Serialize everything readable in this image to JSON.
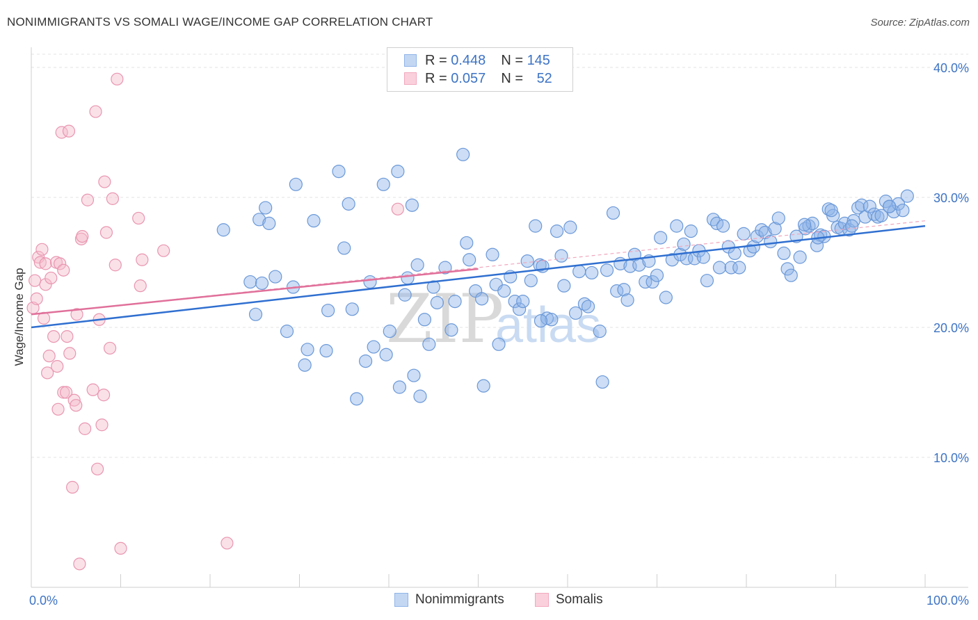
{
  "title": "NONIMMIGRANTS VS SOMALI WAGE/INCOME GAP CORRELATION CHART",
  "source": "Source: ZipAtlas.com",
  "watermark": {
    "zip": "ZIP",
    "atlas": "atlas"
  },
  "legend": {
    "rows": [
      {
        "r_label": "R = ",
        "r_value": "0.448",
        "n_label": "N = ",
        "n_value": "145",
        "color": "#8fb4e8"
      },
      {
        "r_label": "R = ",
        "r_value": "0.057",
        "n_label": "N = ",
        "n_value": "52",
        "color": "#f2a8be"
      }
    ]
  },
  "chart_data": {
    "type": "scatter",
    "xlabel": "",
    "ylabel": "Wage/Income Gap",
    "xlim": [
      0,
      100
    ],
    "ylim": [
      0,
      40
    ],
    "x_tick_labels": [
      "0.0%",
      "100.0%"
    ],
    "y_ticks": [
      10,
      20,
      30,
      40
    ],
    "y_tick_labels": [
      "10.0%",
      "20.0%",
      "30.0%",
      "40.0%"
    ],
    "grid": true,
    "series": [
      {
        "name": "Nonimmigrants",
        "color": "#8fb4e8",
        "stroke": "#6a98d8",
        "trend": {
          "x": [
            0,
            100
          ],
          "y": [
            20.0,
            27.8
          ],
          "color": "#2f6fd0"
        },
        "points": [
          [
            21.5,
            27.5
          ],
          [
            24.5,
            23.5
          ],
          [
            25.5,
            28.3
          ],
          [
            25.8,
            23.4
          ],
          [
            26.2,
            29.2
          ],
          [
            26.6,
            28.0
          ],
          [
            27.3,
            23.9
          ],
          [
            25.1,
            21.0
          ],
          [
            28.6,
            19.7
          ],
          [
            29.3,
            23.1
          ],
          [
            29.6,
            31.0
          ],
          [
            30.6,
            17.1
          ],
          [
            30.9,
            18.3
          ],
          [
            31.6,
            28.2
          ],
          [
            33.0,
            18.2
          ],
          [
            33.2,
            21.3
          ],
          [
            34.4,
            32.0
          ],
          [
            35.0,
            26.1
          ],
          [
            35.5,
            29.5
          ],
          [
            35.9,
            21.4
          ],
          [
            36.4,
            14.5
          ],
          [
            37.4,
            17.4
          ],
          [
            37.9,
            23.5
          ],
          [
            38.3,
            18.5
          ],
          [
            39.4,
            31.0
          ],
          [
            39.7,
            17.9
          ],
          [
            40.1,
            19.7
          ],
          [
            41.0,
            32.0
          ],
          [
            41.2,
            15.4
          ],
          [
            41.8,
            22.5
          ],
          [
            42.1,
            23.8
          ],
          [
            42.6,
            29.4
          ],
          [
            43.2,
            24.8
          ],
          [
            43.5,
            14.7
          ],
          [
            44.0,
            20.6
          ],
          [
            44.5,
            18.7
          ],
          [
            45.0,
            23.1
          ],
          [
            45.4,
            21.9
          ],
          [
            46.3,
            24.6
          ],
          [
            47.0,
            19.8
          ],
          [
            47.4,
            22.0
          ],
          [
            48.3,
            33.3
          ],
          [
            48.7,
            26.5
          ],
          [
            49.0,
            25.2
          ],
          [
            49.7,
            22.8
          ],
          [
            50.4,
            22.2
          ],
          [
            50.6,
            15.5
          ],
          [
            51.6,
            25.6
          ],
          [
            52.0,
            23.3
          ],
          [
            52.3,
            18.7
          ],
          [
            52.9,
            22.8
          ],
          [
            53.6,
            23.9
          ],
          [
            54.1,
            22.0
          ],
          [
            54.6,
            21.4
          ],
          [
            55.0,
            22.0
          ],
          [
            55.5,
            25.1
          ],
          [
            55.9,
            23.6
          ],
          [
            56.4,
            27.8
          ],
          [
            56.9,
            24.8
          ],
          [
            57.2,
            24.7
          ],
          [
            57.7,
            20.7
          ],
          [
            58.2,
            20.6
          ],
          [
            58.8,
            27.4
          ],
          [
            59.3,
            25.5
          ],
          [
            59.6,
            23.2
          ],
          [
            60.3,
            27.7
          ],
          [
            60.9,
            21.1
          ],
          [
            61.3,
            24.3
          ],
          [
            61.9,
            21.8
          ],
          [
            62.3,
            21.6
          ],
          [
            62.7,
            24.2
          ],
          [
            63.6,
            19.7
          ],
          [
            63.9,
            15.8
          ],
          [
            64.4,
            24.4
          ],
          [
            65.1,
            28.8
          ],
          [
            65.5,
            22.8
          ],
          [
            65.9,
            24.9
          ],
          [
            66.3,
            22.9
          ],
          [
            66.7,
            22.1
          ],
          [
            67.0,
            24.7
          ],
          [
            67.5,
            25.6
          ],
          [
            68.0,
            24.8
          ],
          [
            68.7,
            23.5
          ],
          [
            69.1,
            25.1
          ],
          [
            69.5,
            23.5
          ],
          [
            70.0,
            24.0
          ],
          [
            70.4,
            26.9
          ],
          [
            71.0,
            22.3
          ],
          [
            71.7,
            25.2
          ],
          [
            72.2,
            27.8
          ],
          [
            72.6,
            25.6
          ],
          [
            73.0,
            26.4
          ],
          [
            73.3,
            25.3
          ],
          [
            73.8,
            27.4
          ],
          [
            74.2,
            25.3
          ],
          [
            74.7,
            25.9
          ],
          [
            75.2,
            25.4
          ],
          [
            75.6,
            23.6
          ],
          [
            76.3,
            28.3
          ],
          [
            76.7,
            28.0
          ],
          [
            77.0,
            24.6
          ],
          [
            77.4,
            27.8
          ],
          [
            78.0,
            26.2
          ],
          [
            78.3,
            24.6
          ],
          [
            78.7,
            25.7
          ],
          [
            79.2,
            24.6
          ],
          [
            79.7,
            27.2
          ],
          [
            80.4,
            25.9
          ],
          [
            80.8,
            26.2
          ],
          [
            81.2,
            27.0
          ],
          [
            81.7,
            27.5
          ],
          [
            82.1,
            27.3
          ],
          [
            82.7,
            26.6
          ],
          [
            83.2,
            27.6
          ],
          [
            83.6,
            28.4
          ],
          [
            84.2,
            25.7
          ],
          [
            84.6,
            24.5
          ],
          [
            85.0,
            24.0
          ],
          [
            85.6,
            27.0
          ],
          [
            86.0,
            25.4
          ],
          [
            86.6,
            27.6
          ],
          [
            87.0,
            27.8
          ],
          [
            87.4,
            28.0
          ],
          [
            87.9,
            26.3
          ],
          [
            88.3,
            27.1
          ],
          [
            88.7,
            27.0
          ],
          [
            89.2,
            29.1
          ],
          [
            89.7,
            28.6
          ],
          [
            90.2,
            27.7
          ],
          [
            90.6,
            27.6
          ],
          [
            91.0,
            28.0
          ],
          [
            91.5,
            27.5
          ],
          [
            92.0,
            28.2
          ],
          [
            92.5,
            29.2
          ],
          [
            92.9,
            29.4
          ],
          [
            93.3,
            28.5
          ],
          [
            93.8,
            29.3
          ],
          [
            94.3,
            28.7
          ],
          [
            94.7,
            28.5
          ],
          [
            95.1,
            28.6
          ],
          [
            95.6,
            29.7
          ],
          [
            96.0,
            29.3
          ],
          [
            96.5,
            28.9
          ],
          [
            97.0,
            29.5
          ],
          [
            97.5,
            29.0
          ],
          [
            98.0,
            30.1
          ],
          [
            96.0,
            29.3
          ],
          [
            89.5,
            29.0
          ],
          [
            86.5,
            27.9
          ],
          [
            91.8,
            27.8
          ],
          [
            57.0,
            20.5
          ],
          [
            42.8,
            16.3
          ],
          [
            88.0,
            26.9
          ]
        ]
      },
      {
        "name": "Somalis",
        "color": "#f5bccd",
        "stroke": "#e995b0",
        "trend": {
          "x": [
            0,
            50
          ],
          "y": [
            21.0,
            24.5
          ],
          "color": "#e0709a"
        },
        "dashed_trend": {
          "x": [
            0,
            100
          ],
          "y": [
            21.0,
            28.2
          ]
        },
        "points": [
          [
            0.2,
            21.5
          ],
          [
            0.4,
            23.6
          ],
          [
            0.6,
            22.2
          ],
          [
            0.8,
            25.4
          ],
          [
            1.0,
            25.0
          ],
          [
            1.2,
            26.0
          ],
          [
            1.4,
            20.7
          ],
          [
            1.6,
            23.3
          ],
          [
            1.6,
            24.9
          ],
          [
            1.8,
            16.5
          ],
          [
            2.0,
            17.8
          ],
          [
            2.2,
            23.8
          ],
          [
            2.5,
            19.3
          ],
          [
            2.8,
            25.0
          ],
          [
            2.9,
            17.0
          ],
          [
            3.0,
            13.7
          ],
          [
            3.2,
            24.9
          ],
          [
            3.4,
            35.0
          ],
          [
            3.6,
            15.0
          ],
          [
            3.6,
            24.4
          ],
          [
            3.9,
            15.0
          ],
          [
            4.0,
            19.3
          ],
          [
            4.2,
            35.1
          ],
          [
            4.3,
            18.0
          ],
          [
            4.6,
            7.7
          ],
          [
            4.8,
            14.4
          ],
          [
            5.0,
            14.0
          ],
          [
            5.1,
            21.0
          ],
          [
            5.4,
            1.8
          ],
          [
            5.6,
            26.8
          ],
          [
            5.7,
            27.0
          ],
          [
            6.0,
            12.2
          ],
          [
            6.3,
            29.8
          ],
          [
            6.9,
            15.2
          ],
          [
            7.2,
            36.6
          ],
          [
            7.4,
            9.1
          ],
          [
            7.6,
            20.6
          ],
          [
            7.9,
            12.5
          ],
          [
            8.1,
            14.8
          ],
          [
            8.2,
            31.2
          ],
          [
            8.4,
            27.3
          ],
          [
            8.8,
            18.4
          ],
          [
            9.1,
            29.9
          ],
          [
            9.4,
            24.8
          ],
          [
            9.6,
            39.1
          ],
          [
            10.0,
            3.0
          ],
          [
            12.0,
            28.4
          ],
          [
            12.2,
            23.2
          ],
          [
            12.4,
            25.2
          ],
          [
            14.8,
            25.9
          ],
          [
            21.9,
            3.4
          ],
          [
            41.0,
            29.1
          ]
        ]
      }
    ]
  }
}
